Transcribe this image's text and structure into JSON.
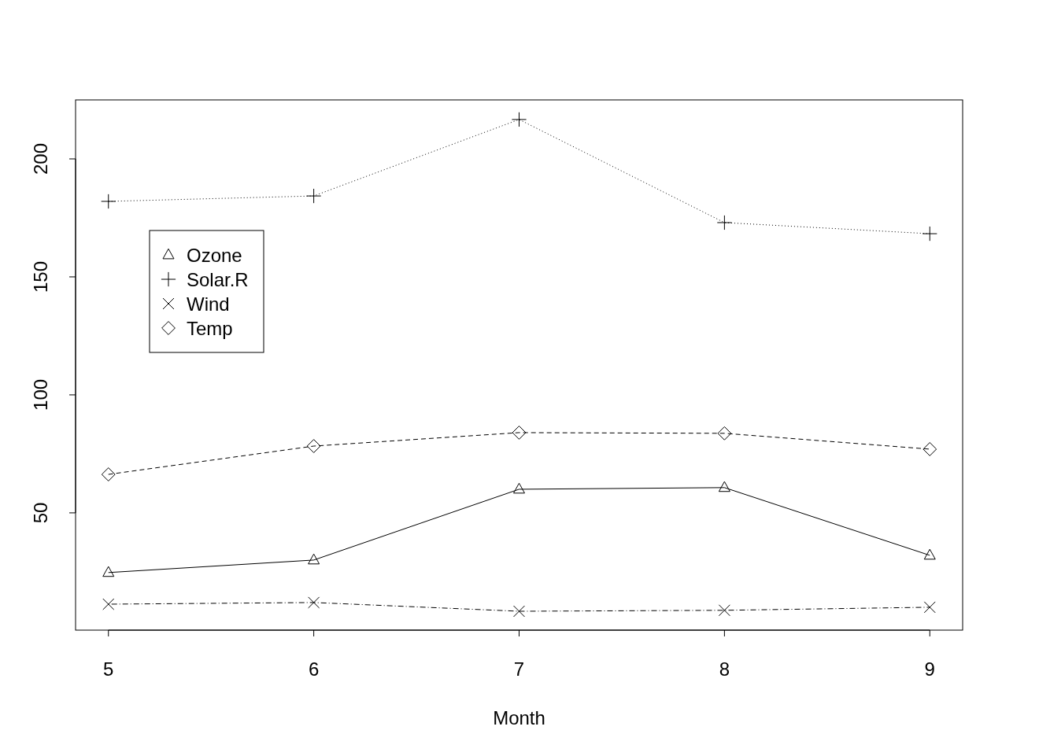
{
  "chart_data": {
    "type": "line",
    "xlabel": "Month",
    "x": [
      5,
      6,
      7,
      8,
      9
    ],
    "series": [
      {
        "name": "Ozone",
        "color": "#000000",
        "marker": "triangle",
        "line_style": "solid",
        "values": [
          24.7,
          30,
          60,
          60.7,
          32
        ]
      },
      {
        "name": "Solar.R",
        "color": "#000000",
        "marker": "plus",
        "line_style": "dotted",
        "values": [
          182,
          184.3,
          216.7,
          173,
          168.3
        ]
      },
      {
        "name": "Wind",
        "color": "#000000",
        "marker": "cross",
        "line_style": "dashdot",
        "values": [
          11.3,
          12,
          8.3,
          8.7,
          10
        ]
      },
      {
        "name": "Temp",
        "color": "#000000",
        "marker": "diamond",
        "line_style": "dashed",
        "values": [
          66.3,
          78.3,
          84,
          83.7,
          77
        ]
      }
    ],
    "xlim": [
      4.84,
      9.16
    ],
    "ylim": [
      0.3,
      225
    ],
    "xticks": [
      5,
      6,
      7,
      8,
      9
    ],
    "yticks": [
      50,
      100,
      150,
      200
    ],
    "grid": false,
    "legend": "top left"
  }
}
